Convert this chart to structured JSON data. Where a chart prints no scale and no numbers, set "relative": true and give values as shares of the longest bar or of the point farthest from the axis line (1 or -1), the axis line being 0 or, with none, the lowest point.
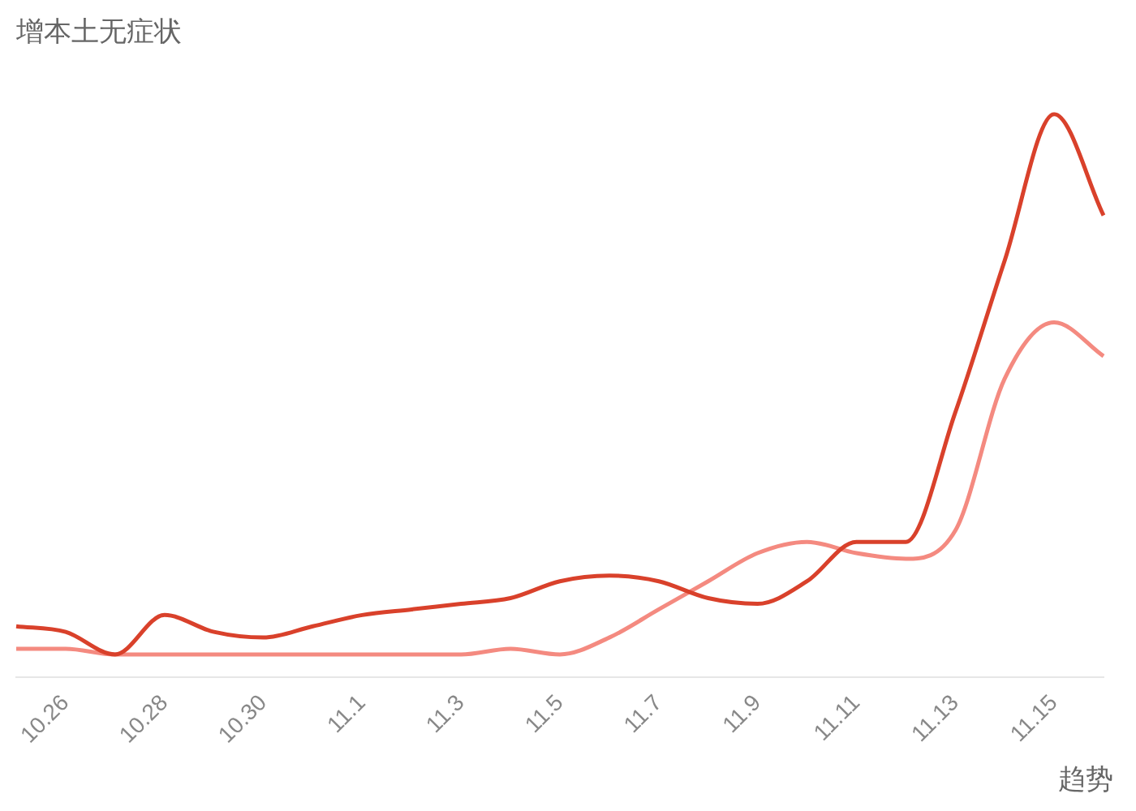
{
  "chart_data": {
    "type": "line",
    "title": "增本土无症状",
    "relative": true,
    "marker": "none",
    "legend": false,
    "categories": [
      null,
      "10.26",
      null,
      "10.28",
      null,
      "10.30",
      null,
      "11.1",
      null,
      "11.3",
      null,
      "11.5",
      null,
      "11.7",
      null,
      "11.9",
      null,
      "11.11",
      null,
      "11.13",
      null,
      "11.15",
      null
    ],
    "series": [
      {
        "color": "#d9412b",
        "values": [
          0.09,
          0.08,
          0.04,
          0.11,
          0.08,
          0.07,
          0.09,
          0.11,
          0.12,
          0.13,
          0.14,
          0.17,
          0.18,
          0.17,
          0.14,
          0.13,
          0.17,
          0.24,
          0.24,
          0.47,
          0.74,
          1,
          0.82
        ]
      },
      {
        "color": "#f48a80",
        "values": [
          0.05,
          0.05,
          0.04,
          0.04,
          0.04,
          0.04,
          0.04,
          0.04,
          0.04,
          0.04,
          0.05,
          0.04,
          0.07,
          0.12,
          0.17,
          0.22,
          0.24,
          0.22,
          0.21,
          0.26,
          0.53,
          0.63,
          0.57
        ]
      }
    ],
    "annotations": [
      "趋势"
    ]
  }
}
